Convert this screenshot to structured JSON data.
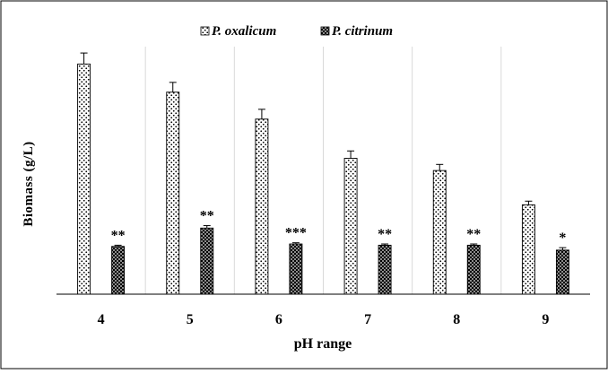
{
  "chart_data": {
    "type": "bar",
    "title": "",
    "xlabel": "pH range",
    "ylabel": "Biomass (g/L)",
    "categories": [
      "4",
      "5",
      "6",
      "7",
      "8",
      "9"
    ],
    "ylim": [
      0,
      10
    ],
    "grid": "vertical category separators",
    "legend_position": "top",
    "series": [
      {
        "name": "P. oxalicum",
        "pattern": "dotted",
        "color": "#000000",
        "values": [
          9.4,
          8.25,
          7.15,
          5.55,
          5.05,
          3.65
        ],
        "errors": [
          0.45,
          0.4,
          0.4,
          0.3,
          0.25,
          0.15
        ],
        "annotations": [
          "",
          "",
          "",
          "",
          "",
          ""
        ]
      },
      {
        "name": "P. citrinum",
        "pattern": "checkered",
        "color": "#000000",
        "values": [
          1.95,
          2.7,
          2.05,
          2.0,
          2.0,
          1.8
        ],
        "errors": [
          0.05,
          0.1,
          0.05,
          0.05,
          0.05,
          0.1
        ],
        "annotations": [
          "**",
          "**",
          "***",
          "**",
          "**",
          "*"
        ]
      }
    ]
  },
  "colors": {
    "frame": "#000000",
    "separator": "#d9d9d9",
    "background": "#ffffff"
  }
}
